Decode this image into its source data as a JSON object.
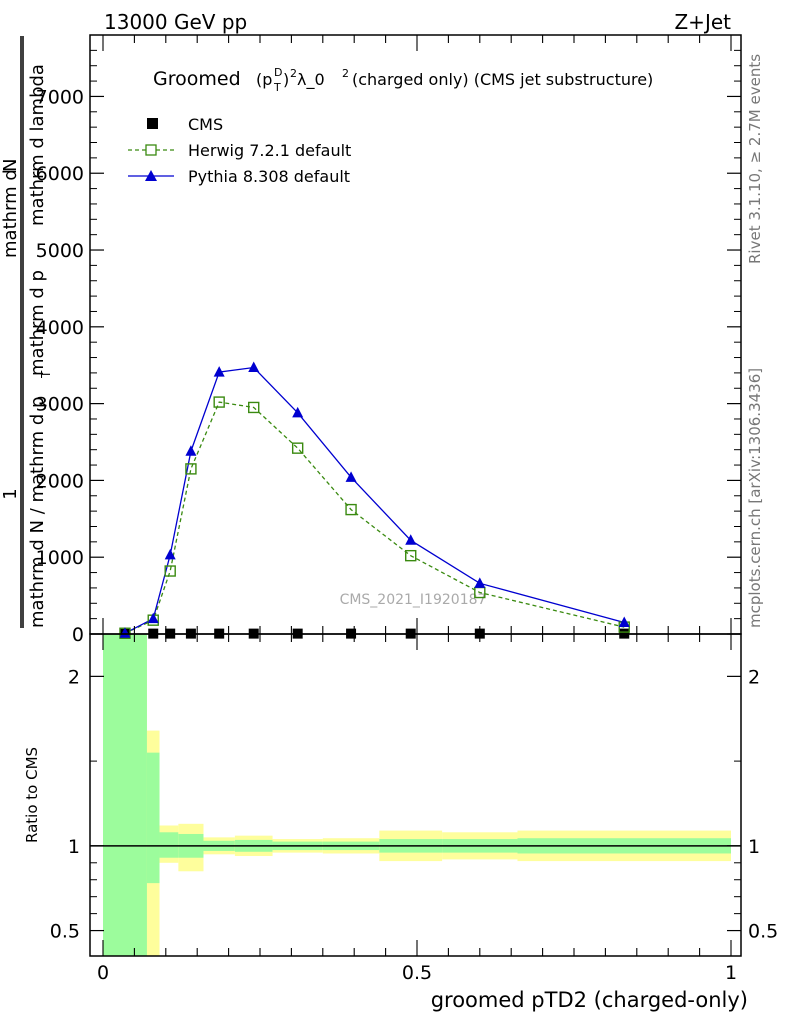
{
  "header": {
    "left": "13000 GeV pp",
    "right": "Z+Jet"
  },
  "plot_title": {
    "prefix": "Groomed",
    "formula_base": "(p",
    "formula_sup": "D",
    "formula_sub": "T",
    "formula_close": ")",
    "formula_power": "2",
    "formula_tail": " λ_0",
    "formula_tail_power": "2",
    "suffix": " (charged only) (CMS jet substructure)"
  },
  "side_labels": {
    "rivet": "Rivet 3.1.10, ≥ 2.7M events",
    "mcplots": "mcplots.cern.ch [arXiv:1306.3436]"
  },
  "watermark": "CMS_2021_I1920187",
  "ylabel_main": {
    "one": "1",
    "numerator_1": "mathrm d",
    "numerator_2": "N",
    "denominator_1": "mathrm d N / mathrm d p",
    "denominator_sub": "T",
    "denominator_2": "mathrm d p",
    "denominator_3": "mathrm d lambda"
  },
  "ylabel_ratio": "Ratio to CMS",
  "xlabel": "groomed pTD2 (charged-only)",
  "legend": [
    {
      "key": "cms",
      "label": "CMS"
    },
    {
      "key": "herwig",
      "label": "Herwig 7.2.1 default"
    },
    {
      "key": "pythia",
      "label": "Pythia 8.308 default"
    }
  ],
  "colors": {
    "cms": "#000000",
    "herwig": "#3a8a10",
    "pythia": "#0000d0",
    "band_green": "#9cfc9c",
    "band_yellow": "#fefe9c"
  },
  "chart_data": [
    {
      "type": "line",
      "panel": "main",
      "xlim": [
        0,
        1
      ],
      "ylim": [
        0,
        7800
      ],
      "y_ticks": [
        0,
        1000,
        2000,
        3000,
        4000,
        5000,
        6000,
        7000
      ],
      "y_tick_labels": [
        "0",
        "1000",
        "2000",
        "3000",
        "4000",
        "5000",
        "6000",
        "7000"
      ],
      "series": [
        {
          "name": "CMS",
          "marker": "square",
          "x": [
            0.035,
            0.08,
            0.107,
            0.14,
            0.185,
            0.24,
            0.31,
            0.395,
            0.49,
            0.6,
            0.83
          ],
          "y": [
            3,
            5,
            5,
            5,
            5,
            5,
            5,
            5,
            5,
            5,
            5
          ]
        },
        {
          "name": "Herwig 7.2.1 default",
          "marker": "open-square",
          "dashed": true,
          "x": [
            0.035,
            0.08,
            0.107,
            0.14,
            0.185,
            0.24,
            0.31,
            0.395,
            0.49,
            0.6,
            0.83
          ],
          "y": [
            10,
            180,
            820,
            2150,
            3020,
            2950,
            2420,
            1620,
            1020,
            540,
            90
          ]
        },
        {
          "name": "Pythia 8.308 default",
          "marker": "triangle",
          "x": [
            0.035,
            0.08,
            0.107,
            0.14,
            0.185,
            0.24,
            0.31,
            0.395,
            0.49,
            0.6,
            0.83
          ],
          "y": [
            10,
            200,
            1030,
            2380,
            3410,
            3470,
            2880,
            2040,
            1220,
            660,
            150
          ]
        }
      ]
    },
    {
      "type": "area",
      "panel": "ratio",
      "xlim": [
        0,
        1
      ],
      "ylim": [
        0.35,
        2.25
      ],
      "y_ticks": [
        0.5,
        1,
        2
      ],
      "y_tick_labels": [
        "0.5",
        "1",
        "2"
      ],
      "x_ticks": [
        0,
        0.5,
        1
      ],
      "x_tick_labels": [
        "0",
        "0.5",
        "1"
      ],
      "bins": [
        {
          "x0": 0.0,
          "x1": 0.07,
          "green": [
            0.35,
            2.25
          ],
          "yellow": [
            0.35,
            2.25
          ]
        },
        {
          "x0": 0.07,
          "x1": 0.09,
          "green": [
            0.78,
            1.55
          ],
          "yellow": [
            0.35,
            1.68
          ]
        },
        {
          "x0": 0.09,
          "x1": 0.12,
          "green": [
            0.93,
            1.08
          ],
          "yellow": [
            0.9,
            1.12
          ]
        },
        {
          "x0": 0.12,
          "x1": 0.16,
          "green": [
            0.93,
            1.07
          ],
          "yellow": [
            0.85,
            1.13
          ]
        },
        {
          "x0": 0.16,
          "x1": 0.21,
          "green": [
            0.97,
            1.03
          ],
          "yellow": [
            0.95,
            1.05
          ]
        },
        {
          "x0": 0.21,
          "x1": 0.27,
          "green": [
            0.965,
            1.035
          ],
          "yellow": [
            0.94,
            1.06
          ]
        },
        {
          "x0": 0.27,
          "x1": 0.35,
          "green": [
            0.975,
            1.025
          ],
          "yellow": [
            0.96,
            1.04
          ]
        },
        {
          "x0": 0.35,
          "x1": 0.44,
          "green": [
            0.975,
            1.025
          ],
          "yellow": [
            0.955,
            1.045
          ]
        },
        {
          "x0": 0.44,
          "x1": 0.54,
          "green": [
            0.96,
            1.04
          ],
          "yellow": [
            0.91,
            1.09
          ]
        },
        {
          "x0": 0.54,
          "x1": 0.66,
          "green": [
            0.96,
            1.04
          ],
          "yellow": [
            0.92,
            1.08
          ]
        },
        {
          "x0": 0.66,
          "x1": 1.0,
          "green": [
            0.955,
            1.045
          ],
          "yellow": [
            0.91,
            1.09
          ]
        }
      ]
    }
  ]
}
